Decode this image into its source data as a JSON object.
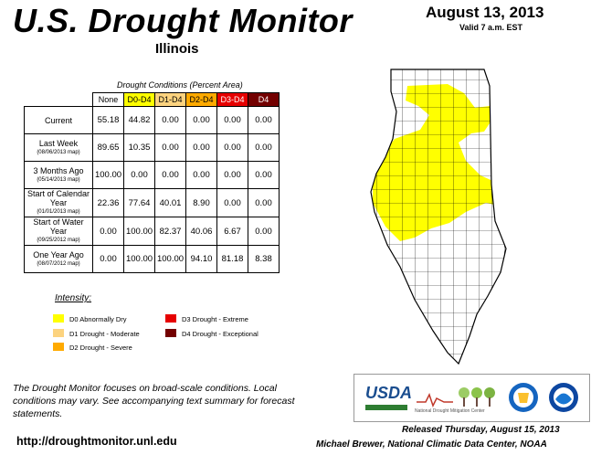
{
  "header": {
    "title": "U.S. Drought Monitor",
    "date": "August 13, 2013",
    "valid": "Valid 7 a.m. EST",
    "state": "Illinois"
  },
  "table": {
    "caption": "Drought Conditions (Percent Area)",
    "columns": [
      "None",
      "D0-D4",
      "D1-D4",
      "D2-D4",
      "D3-D4",
      "D4"
    ],
    "rows": [
      {
        "label": "Current",
        "sub": "",
        "values": [
          "55.18",
          "44.82",
          "0.00",
          "0.00",
          "0.00",
          "0.00"
        ]
      },
      {
        "label": "Last Week",
        "sub": "(08/06/2013 map)",
        "values": [
          "89.65",
          "10.35",
          "0.00",
          "0.00",
          "0.00",
          "0.00"
        ]
      },
      {
        "label": "3 Months Ago",
        "sub": "(05/14/2013 map)",
        "values": [
          "100.00",
          "0.00",
          "0.00",
          "0.00",
          "0.00",
          "0.00"
        ]
      },
      {
        "label": "Start of Calendar Year",
        "sub": "(01/01/2013 map)",
        "values": [
          "22.36",
          "77.64",
          "40.01",
          "8.90",
          "0.00",
          "0.00"
        ]
      },
      {
        "label": "Start of Water Year",
        "sub": "(09/25/2012 map)",
        "values": [
          "0.00",
          "100.00",
          "82.37",
          "40.06",
          "6.67",
          "0.00"
        ]
      },
      {
        "label": "One Year Ago",
        "sub": "(08/07/2012 map)",
        "values": [
          "0.00",
          "100.00",
          "100.00",
          "94.10",
          "81.18",
          "8.38"
        ]
      }
    ]
  },
  "legend": {
    "title": "Intensity:",
    "items": [
      {
        "label": "D0 Abnormally Dry",
        "color": "#ffff00"
      },
      {
        "label": "D1 Drought - Moderate",
        "color": "#fcd37f"
      },
      {
        "label": "D2 Drought - Severe",
        "color": "#ffaa00"
      },
      {
        "label": "D3 Drought - Extreme",
        "color": "#e60000"
      },
      {
        "label": "D4 Drought - Exceptional",
        "color": "#730000"
      }
    ]
  },
  "footer": {
    "note": "The Drought Monitor focuses on broad-scale conditions. Local conditions may vary. See accompanying text summary for forecast statements.",
    "url": "http://droughtmonitor.unl.edu",
    "released": "Released Thursday, August 15, 2013",
    "author": "Michael Brewer, National Climatic Data Center, NOAA"
  },
  "logos": {
    "usda": "USDA",
    "ndmc": "National Drought Mitigation Center"
  },
  "map": {
    "colors": {
      "none": "#ffffff",
      "d0": "#ffff00",
      "border": "#000000"
    },
    "region": "Illinois",
    "d0_coverage_percent": 44.82
  }
}
